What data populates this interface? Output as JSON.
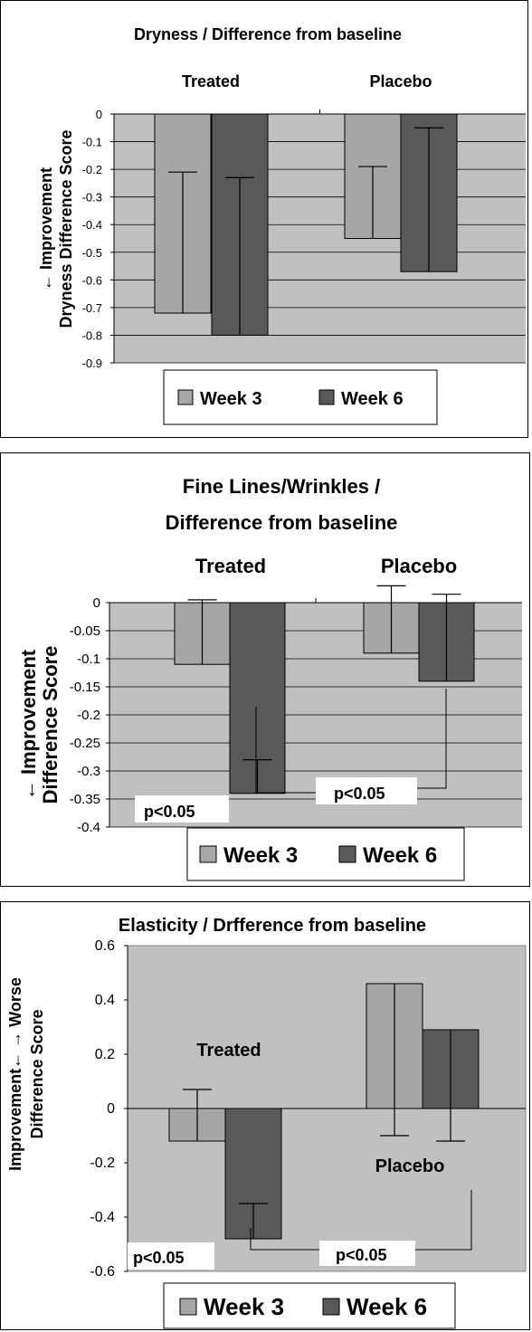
{
  "chart_data": [
    {
      "type": "bar",
      "title": "Dryness / Difference from baseline",
      "ylabel": "Dryness Difference Score",
      "ylabel_arrow": "← Improvement",
      "categories": [
        "Treated",
        "Placebo"
      ],
      "series": [
        {
          "name": "Week 3",
          "values": [
            -0.72,
            -0.45
          ]
        },
        {
          "name": "Week 6",
          "values": [
            -0.8,
            -0.57
          ]
        }
      ],
      "error_bars": {
        "Week 3": [
          0.51,
          0.26
        ],
        "Week 6": [
          0.57,
          0.52
        ]
      },
      "ylim": [
        -0.9,
        0
      ],
      "yticks": [
        "0",
        "-0.1",
        "-0.2",
        "-0.3",
        "-0.4",
        "-0.5",
        "-0.6",
        "-0.7",
        "-0.8",
        "-0.9"
      ],
      "annotations": [],
      "legend": [
        "Week 3",
        "Week 6"
      ],
      "colors": {
        "Week 3": "#a6a6a6",
        "Week 6": "#595959",
        "plot_bg": "#c0c0c0"
      },
      "grid": true,
      "legend_position": "bottom"
    },
    {
      "type": "bar",
      "title_lines": [
        "Fine Lines/Wrinkles /",
        "Difference from baseline"
      ],
      "ylabel": "Difference Score",
      "ylabel_arrow": "← Improvement",
      "categories": [
        "Treated",
        "Placebo"
      ],
      "series": [
        {
          "name": "Week 3",
          "values": [
            -0.11,
            -0.09
          ]
        },
        {
          "name": "Week 6",
          "values": [
            -0.34,
            -0.14
          ]
        }
      ],
      "error_bars": {
        "Week 3": [
          0.115,
          0.12
        ],
        "Week 6": [
          0.06,
          0.155
        ]
      },
      "ylim": [
        -0.4,
        0
      ],
      "yticks": [
        "0",
        "-0.05",
        "-0.1",
        "-0.15",
        "-0.2",
        "-0.25",
        "-0.3",
        "-0.35",
        "-0.4"
      ],
      "annotations": [
        "p<0.05",
        "p<0.05"
      ],
      "legend": [
        "Week 3",
        "Week 6"
      ],
      "colors": {
        "Week 3": "#a6a6a6",
        "Week 6": "#595959",
        "plot_bg": "#c0c0c0"
      },
      "grid": true,
      "legend_position": "bottom"
    },
    {
      "type": "bar",
      "title": "Elasticity / Drfference from baseline",
      "ylabel": "Difference Score",
      "ylabel_arrow": "Improvement← → Worse",
      "categories": [
        "Treated",
        "Placebo"
      ],
      "series": [
        {
          "name": "Week 3",
          "values": [
            -0.12,
            0.46
          ]
        },
        {
          "name": "Week 6",
          "values": [
            -0.48,
            0.29
          ]
        }
      ],
      "error_bars": {
        "Week 3": [
          0.19,
          0.56
        ],
        "Week 6": [
          0.13,
          0.41
        ]
      },
      "ylim": [
        -0.6,
        0.6
      ],
      "yticks": [
        "0.6",
        "0.4",
        "0.2",
        "0",
        "-0.2",
        "-0.4",
        "-0.6"
      ],
      "annotations": [
        "p<0.05",
        "p<0.05"
      ],
      "legend": [
        "Week 3",
        "Week 6"
      ],
      "colors": {
        "Week 3": "#a6a6a6",
        "Week 6": "#595959",
        "plot_bg": "#c0c0c0"
      },
      "grid": false,
      "legend_position": "bottom"
    }
  ]
}
